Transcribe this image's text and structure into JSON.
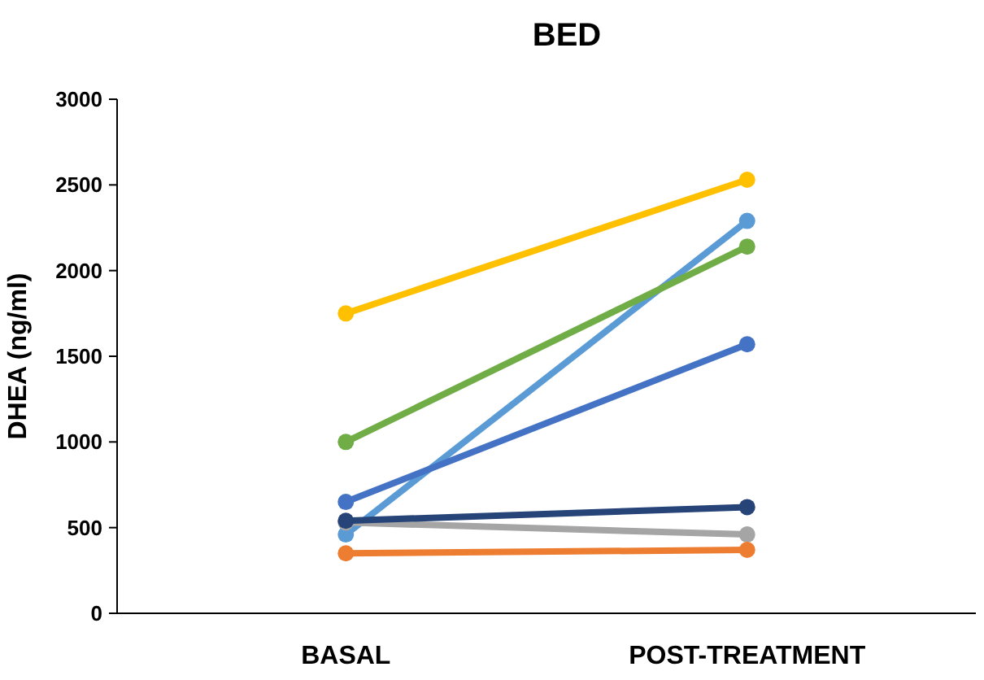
{
  "chart_data": {
    "type": "line",
    "title": "BED",
    "ylabel": "DHEA (ng/ml)",
    "categories": [
      "BASAL",
      "POST-TREATMENT"
    ],
    "ylim": [
      0,
      3000
    ],
    "yticks": [
      0,
      500,
      1000,
      1500,
      2000,
      2500,
      3000
    ],
    "marker": "circle",
    "line_style": "solid",
    "series": [
      {
        "color": "#ffc000",
        "values": [
          1750,
          2530
        ]
      },
      {
        "color": "#5b9bd5",
        "values": [
          460,
          2290
        ]
      },
      {
        "color": "#70ad47",
        "values": [
          1000,
          2140
        ]
      },
      {
        "color": "#4472c4",
        "values": [
          650,
          1570
        ]
      },
      {
        "color": "#a5a5a5",
        "values": [
          530,
          460
        ]
      },
      {
        "color": "#264478",
        "values": [
          540,
          620
        ]
      },
      {
        "color": "#ed7d31",
        "values": [
          350,
          370
        ]
      }
    ]
  }
}
